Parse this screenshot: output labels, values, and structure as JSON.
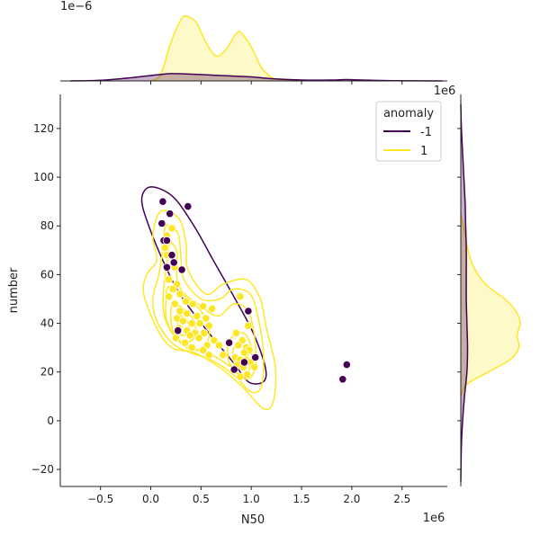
{
  "chart_data": {
    "type": "scatter",
    "subtype": "jointplot",
    "xlabel": "N50",
    "ylabel": "number",
    "x_scale_label": "1e6",
    "y_scale_label": "1e6",
    "top_marginal_scale_label": "1e−6",
    "xlim": [
      -0.9,
      2.95
    ],
    "ylim": [
      -27,
      134
    ],
    "x_ticks": [
      -0.5,
      0.0,
      0.5,
      1.0,
      1.5,
      2.0,
      2.5
    ],
    "x_tick_labels": [
      "−0.5",
      "0.0",
      "0.5",
      "1.0",
      "1.5",
      "2.0",
      "2.5"
    ],
    "y_ticks": [
      -20,
      0,
      20,
      40,
      60,
      80,
      100,
      120
    ],
    "y_tick_labels": [
      "−20",
      "0",
      "20",
      "40",
      "60",
      "80",
      "100",
      "120"
    ],
    "legend": {
      "title": "anomaly",
      "placement": "top-right",
      "entries": [
        {
          "label": "-1",
          "color": "#440154"
        },
        {
          "label": "1",
          "color": "#fde725"
        }
      ]
    },
    "grid": false,
    "series": [
      {
        "name": "-1",
        "color": "#440154",
        "points": [
          [
            0.12,
            90
          ],
          [
            0.37,
            88
          ],
          [
            0.19,
            85
          ],
          [
            0.11,
            81
          ],
          [
            0.13,
            74
          ],
          [
            0.16,
            74
          ],
          [
            0.21,
            68
          ],
          [
            0.23,
            65
          ],
          [
            0.16,
            63
          ],
          [
            0.31,
            62
          ],
          [
            0.97,
            45
          ],
          [
            0.27,
            37
          ],
          [
            0.78,
            32
          ],
          [
            0.83,
            21
          ],
          [
            0.93,
            24
          ],
          [
            1.04,
            26
          ],
          [
            1.95,
            23
          ],
          [
            1.91,
            17
          ]
        ]
      },
      {
        "name": "1",
        "color": "#fde725",
        "points": [
          [
            0.21,
            79
          ],
          [
            0.16,
            76
          ],
          [
            0.14,
            71
          ],
          [
            0.16,
            68
          ],
          [
            0.24,
            63
          ],
          [
            0.18,
            58
          ],
          [
            0.26,
            56
          ],
          [
            0.22,
            54
          ],
          [
            0.29,
            52
          ],
          [
            0.18,
            51
          ],
          [
            0.24,
            48
          ],
          [
            0.35,
            49
          ],
          [
            0.42,
            48
          ],
          [
            0.52,
            47
          ],
          [
            0.61,
            46
          ],
          [
            0.29,
            45
          ],
          [
            0.36,
            44
          ],
          [
            0.46,
            43
          ],
          [
            0.55,
            42
          ],
          [
            0.26,
            42
          ],
          [
            0.32,
            41
          ],
          [
            0.41,
            40
          ],
          [
            0.49,
            40
          ],
          [
            0.58,
            39
          ],
          [
            0.28,
            38
          ],
          [
            0.36,
            37
          ],
          [
            0.44,
            36
          ],
          [
            0.53,
            36
          ],
          [
            0.39,
            35
          ],
          [
            0.25,
            34
          ],
          [
            0.48,
            34
          ],
          [
            0.63,
            33
          ],
          [
            0.34,
            32
          ],
          [
            0.56,
            31
          ],
          [
            0.41,
            30
          ],
          [
            0.52,
            29
          ],
          [
            0.58,
            27
          ],
          [
            0.89,
            51
          ],
          [
            0.85,
            36
          ],
          [
            0.97,
            39
          ],
          [
            0.91,
            33
          ],
          [
            0.87,
            31
          ],
          [
            0.95,
            30
          ],
          [
            0.98,
            29
          ],
          [
            0.93,
            28
          ],
          [
            0.84,
            26
          ],
          [
            0.89,
            25
          ],
          [
            0.95,
            25
          ],
          [
            0.99,
            24
          ],
          [
            0.86,
            23
          ],
          [
            0.92,
            22
          ],
          [
            1.03,
            22
          ],
          [
            0.96,
            19
          ],
          [
            0.89,
            18
          ],
          [
            0.68,
            31
          ],
          [
            0.72,
            27
          ]
        ]
      }
    ],
    "kde_contours": [
      {
        "series": "-1",
        "color": "#440154",
        "levels": [
          [
            [
              0.0,
              96
            ],
            [
              0.22,
              92
            ],
            [
              0.43,
              80
            ],
            [
              0.62,
              66
            ],
            [
              0.84,
              50
            ],
            [
              1.02,
              36
            ],
            [
              1.14,
              22
            ],
            [
              1.12,
              16
            ],
            [
              0.97,
              16
            ],
            [
              0.82,
              24
            ],
            [
              0.54,
              38
            ],
            [
              0.29,
              52
            ],
            [
              0.14,
              64
            ],
            [
              -0.02,
              80
            ],
            [
              -0.09,
              91
            ]
          ]
        ]
      },
      {
        "series": "1",
        "color": "#fde725",
        "levels": [
          [
            [
              0.1,
              86
            ],
            [
              0.28,
              83
            ],
            [
              0.35,
              73
            ],
            [
              0.37,
              62
            ],
            [
              0.55,
              52
            ],
            [
              0.72,
              56
            ],
            [
              0.95,
              58
            ],
            [
              1.09,
              50
            ],
            [
              1.15,
              38
            ],
            [
              1.24,
              22
            ],
            [
              1.22,
              8
            ],
            [
              1.12,
              5
            ],
            [
              0.91,
              14
            ],
            [
              0.68,
              22
            ],
            [
              0.43,
              28
            ],
            [
              0.21,
              30
            ],
            [
              0.06,
              38
            ],
            [
              -0.07,
              52
            ],
            [
              -0.04,
              60
            ],
            [
              0.06,
              66
            ],
            [
              0.02,
              76
            ]
          ],
          [
            [
              0.15,
              80
            ],
            [
              0.27,
              77
            ],
            [
              0.3,
              67
            ],
            [
              0.33,
              58
            ],
            [
              0.5,
              50
            ],
            [
              0.69,
              50
            ],
            [
              0.82,
              54
            ],
            [
              0.99,
              52
            ],
            [
              1.07,
              42
            ],
            [
              1.12,
              28
            ],
            [
              1.1,
              14
            ],
            [
              0.99,
              12
            ],
            [
              0.82,
              19
            ],
            [
              0.6,
              25
            ],
            [
              0.39,
              28
            ],
            [
              0.21,
              32
            ],
            [
              0.06,
              41
            ],
            [
              0.02,
              50
            ],
            [
              0.08,
              60
            ],
            [
              0.12,
              70
            ]
          ],
          [
            [
              0.19,
              73
            ],
            [
              0.26,
              69
            ],
            [
              0.26,
              58
            ],
            [
              0.34,
              52
            ],
            [
              0.5,
              47
            ],
            [
              0.67,
              43
            ],
            [
              0.83,
              48
            ],
            [
              0.97,
              45
            ],
            [
              1.03,
              35
            ],
            [
              1.04,
              22
            ],
            [
              0.95,
              17
            ],
            [
              0.8,
              22
            ],
            [
              0.61,
              27
            ],
            [
              0.4,
              30
            ],
            [
              0.23,
              35
            ],
            [
              0.13,
              44
            ],
            [
              0.13,
              55
            ],
            [
              0.16,
              64
            ]
          ],
          [
            [
              0.18,
              55
            ],
            [
              0.34,
              51
            ],
            [
              0.5,
              45
            ],
            [
              0.58,
              38
            ],
            [
              0.55,
              31
            ],
            [
              0.42,
              29
            ],
            [
              0.27,
              33
            ],
            [
              0.16,
              41
            ],
            [
              0.15,
              49
            ]
          ],
          [
            [
              0.78,
              33
            ],
            [
              0.92,
              36
            ],
            [
              1.0,
              30
            ],
            [
              0.98,
              21
            ],
            [
              0.88,
              19
            ],
            [
              0.78,
              24
            ]
          ],
          [
            [
              0.22,
              48
            ],
            [
              0.35,
              45
            ],
            [
              0.44,
              40
            ],
            [
              0.43,
              34
            ],
            [
              0.32,
              32
            ],
            [
              0.23,
              36
            ],
            [
              0.2,
              42
            ]
          ],
          [
            [
              0.83,
              30
            ],
            [
              0.94,
              31
            ],
            [
              0.96,
              25
            ],
            [
              0.88,
              22
            ],
            [
              0.82,
              25
            ]
          ],
          [
            [
              0.28,
              43
            ],
            [
              0.36,
              41
            ],
            [
              0.38,
              37
            ],
            [
              0.31,
              35
            ],
            [
              0.27,
              38
            ]
          ]
        ]
      }
    ],
    "marginal_x": {
      "ylim": [
        0,
        1.55
      ],
      "series": [
        {
          "series": "1",
          "color": "#fde725",
          "x": [
            0.0,
            0.1,
            0.2,
            0.3,
            0.35,
            0.45,
            0.55,
            0.65,
            0.75,
            0.85,
            0.9,
            1.0,
            1.1,
            1.2,
            1.3,
            1.45
          ],
          "density": [
            0.0,
            0.15,
            0.85,
            1.35,
            1.43,
            1.3,
            0.85,
            0.55,
            0.7,
            1.05,
            1.06,
            0.75,
            0.3,
            0.08,
            0.02,
            0.0
          ]
        },
        {
          "series": "-1",
          "color": "#440154",
          "x": [
            -0.8,
            -0.5,
            -0.2,
            0.0,
            0.2,
            0.4,
            0.6,
            0.8,
            1.0,
            1.2,
            1.5,
            1.8,
            1.95,
            2.1,
            2.4,
            2.9
          ],
          "density": [
            0.0,
            0.015,
            0.07,
            0.12,
            0.16,
            0.15,
            0.13,
            0.11,
            0.09,
            0.05,
            0.02,
            0.02,
            0.03,
            0.02,
            0.005,
            0.0
          ]
        }
      ]
    },
    "marginal_y": {
      "series": [
        {
          "series": "1",
          "color": "#fde725",
          "y": [
            10,
            15,
            20,
            25,
            30,
            35,
            40,
            45,
            50,
            55,
            60,
            65,
            70,
            75,
            80,
            85
          ],
          "density": [
            0.0,
            0.1,
            0.45,
            0.8,
            0.95,
            0.92,
            0.97,
            0.9,
            0.72,
            0.45,
            0.28,
            0.18,
            0.12,
            0.08,
            0.04,
            0.0
          ]
        },
        {
          "series": "-1",
          "color": "#440154",
          "y": [
            -25,
            -10,
            0,
            10,
            20,
            30,
            40,
            50,
            60,
            70,
            80,
            90,
            100,
            110,
            120,
            130
          ],
          "density": [
            0.0,
            0.01,
            0.03,
            0.06,
            0.1,
            0.11,
            0.1,
            0.09,
            0.09,
            0.09,
            0.08,
            0.07,
            0.05,
            0.03,
            0.01,
            0.0
          ]
        }
      ]
    }
  }
}
